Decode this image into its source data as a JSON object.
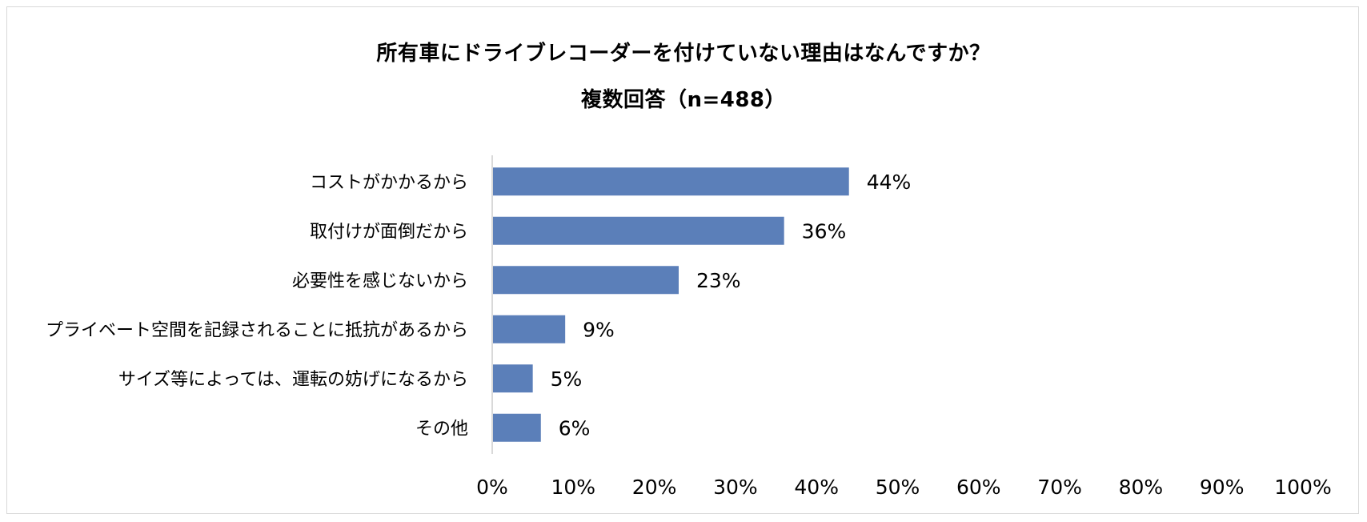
{
  "chart_data": {
    "type": "bar",
    "orientation": "horizontal",
    "title_line1": "所有車にドライブレコーダーを付けていない理由はなんですか？",
    "title_line2": "複数回答（n=488）",
    "categories": [
      "コストがかかるから",
      "取付けが面倒だから",
      "必要性を感じないから",
      "プライベート空間を記録されることに抵抗があるから",
      "サイズ等によっては、運転の妨げになるから",
      "その他"
    ],
    "values": [
      44,
      36,
      23,
      9,
      5,
      6
    ],
    "value_labels": [
      "44%",
      "36%",
      "23%",
      "9%",
      "5%",
      "6%"
    ],
    "xlim": [
      0,
      100
    ],
    "x_ticks": [
      "0%",
      "10%",
      "20%",
      "30%",
      "40%",
      "50%",
      "60%",
      "70%",
      "80%",
      "90%",
      "100%"
    ],
    "grid": false,
    "legend": "none",
    "bar_color": "#5b7fb9"
  }
}
